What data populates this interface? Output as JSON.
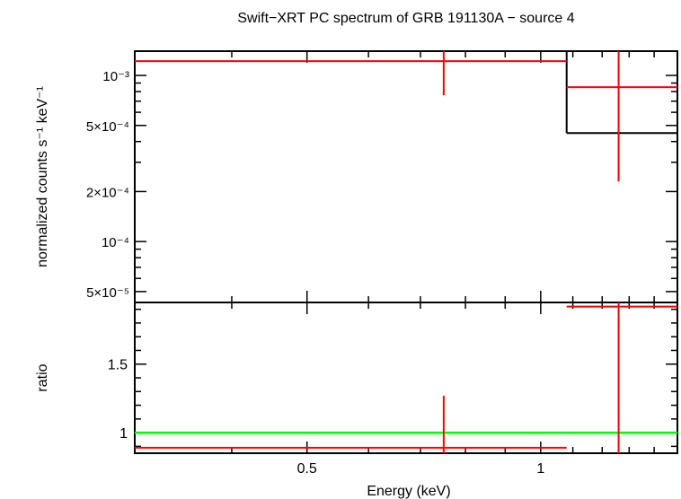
{
  "chart_data": [
    {
      "type": "scatter",
      "panel": "spectrum",
      "title": "Swift−XRT PC spectrum of GRB 191130A − source 4",
      "ylabel": "normalized counts s⁻¹ keV⁻¹",
      "xlabel": "",
      "xscale": "log",
      "yscale": "log",
      "xlim": [
        0.3,
        1.5
      ],
      "ylim": [
        4.3e-05,
        0.0014
      ],
      "ytick_labels": [
        "10⁻³",
        "5×10⁻⁴",
        "2×10⁻⁴",
        "10⁻⁴",
        "5×10⁻⁵"
      ],
      "yticks": [
        0.001,
        0.0005,
        0.0002,
        0.0001,
        5e-05
      ],
      "series": [
        {
          "kind": "data",
          "color": "#ff0000",
          "points": [
            {
              "x": 0.75,
              "xlo": 0.3,
              "xhi": 1.08,
              "y": 0.00122,
              "ylo": 0.00076,
              "yhi": 0.0014
            },
            {
              "x": 1.26,
              "xlo": 1.08,
              "xhi": 1.5,
              "y": 0.00085,
              "ylo": 0.00023,
              "yhi": 0.0014
            }
          ]
        },
        {
          "kind": "model",
          "color": "#000000",
          "steps": [
            {
              "xlo": 0.3,
              "xhi": 1.08,
              "y": 0.0015
            },
            {
              "xlo": 1.08,
              "xhi": 1.5,
              "y": 0.00045
            }
          ]
        }
      ]
    },
    {
      "type": "scatter",
      "panel": "ratio",
      "ylabel": "ratio",
      "xlabel": "Energy (keV)",
      "xscale": "log",
      "xlim": [
        0.3,
        1.5
      ],
      "ylim": [
        0.85,
        1.95
      ],
      "xtick_labels": [
        "0.5",
        "1"
      ],
      "xticks": [
        0.5,
        1.0
      ],
      "ytick_labels": [
        "1.5",
        "1"
      ],
      "yticks": [
        1.5,
        1.0
      ],
      "reference_line": {
        "y": 1.0,
        "color": "#00ff00"
      },
      "series": [
        {
          "kind": "data",
          "color": "#ff0000",
          "points": [
            {
              "x": 0.75,
              "xlo": 0.3,
              "xhi": 1.08,
              "y": 0.89,
              "ylo": 0.85,
              "yhi": 1.27
            },
            {
              "x": 1.26,
              "xlo": 1.08,
              "xhi": 1.5,
              "y": 1.92,
              "ylo": 0.85,
              "yhi": 1.95
            }
          ]
        }
      ]
    }
  ]
}
